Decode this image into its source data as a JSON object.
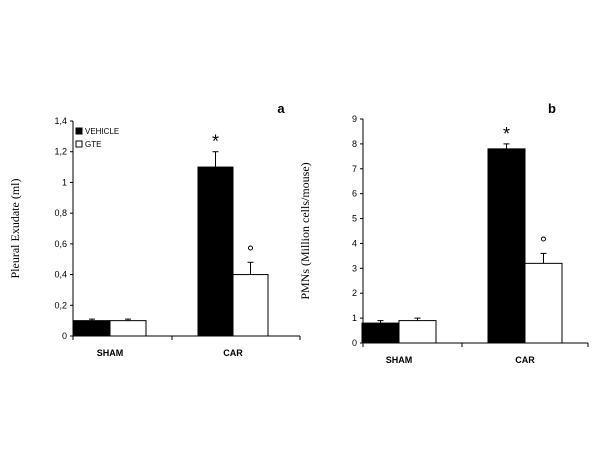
{
  "chart_data": [
    {
      "type": "bar",
      "panel_label": "a",
      "ylabel": "Pleural Exudate (ml)",
      "ylim": [
        0,
        1.4
      ],
      "yticks": [
        "0",
        "0,2",
        "0,4",
        "0,6",
        "0,8",
        "1",
        "1,2",
        "1,4"
      ],
      "categories": [
        "SHAM",
        "CAR"
      ],
      "series": [
        {
          "name": "VEHICLE",
          "color": "#000000",
          "values": [
            0.1,
            1.1
          ],
          "errors": [
            0.01,
            0.1
          ]
        },
        {
          "name": "GTE",
          "color": "#ffffff",
          "values": [
            0.1,
            0.4
          ],
          "errors": [
            0.01,
            0.08
          ]
        }
      ],
      "annotations": [
        {
          "text": "*",
          "category": "CAR",
          "series": "VEHICLE"
        },
        {
          "text": "°",
          "category": "CAR",
          "series": "GTE"
        }
      ],
      "legend": "top-left",
      "grid": false
    },
    {
      "type": "bar",
      "panel_label": "b",
      "ylabel": "PMNs (Million cells/mouse)",
      "ylim": [
        0,
        9
      ],
      "yticks": [
        "0",
        "1",
        "2",
        "3",
        "4",
        "5",
        "6",
        "7",
        "8",
        "9"
      ],
      "categories": [
        "SHAM",
        "CAR"
      ],
      "series": [
        {
          "name": "VEHICLE",
          "color": "#000000",
          "values": [
            0.8,
            7.8
          ],
          "errors": [
            0.1,
            0.2
          ]
        },
        {
          "name": "GTE",
          "color": "#ffffff",
          "values": [
            0.9,
            3.2
          ],
          "errors": [
            0.1,
            0.4
          ]
        }
      ],
      "annotations": [
        {
          "text": "*",
          "category": "CAR",
          "series": "VEHICLE"
        },
        {
          "text": "°",
          "category": "CAR",
          "series": "GTE"
        }
      ],
      "legend": "none",
      "grid": false
    }
  ]
}
